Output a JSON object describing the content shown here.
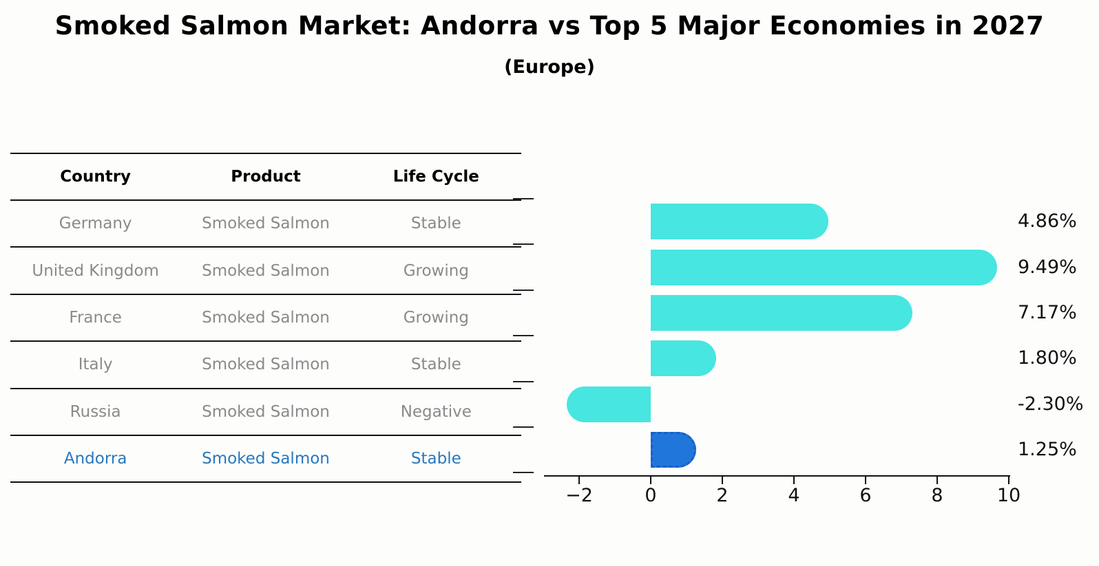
{
  "title": "Smoked Salmon Market: Andorra vs Top 5 Major Economies in 2027",
  "subtitle": "(Europe)",
  "table": {
    "headers": [
      "Country",
      "Product",
      "Life Cycle"
    ],
    "rows": [
      {
        "country": "Germany",
        "product": "Smoked Salmon",
        "life_cycle": "Stable",
        "highlight": false
      },
      {
        "country": "United Kingdom",
        "product": "Smoked Salmon",
        "life_cycle": "Growing",
        "highlight": false
      },
      {
        "country": "France",
        "product": "Smoked Salmon",
        "life_cycle": "Growing",
        "highlight": false
      },
      {
        "country": "Italy",
        "product": "Smoked Salmon",
        "life_cycle": "Stable",
        "highlight": false
      },
      {
        "country": "Russia",
        "product": "Smoked Salmon",
        "life_cycle": "Negative",
        "highlight": false
      },
      {
        "country": "Andorra",
        "product": "Smoked Salmon",
        "life_cycle": "Stable",
        "highlight": true
      }
    ],
    "highlight_text_color": "#2878be",
    "text_color": "#8a8a8a",
    "header_color": "#000000"
  },
  "chart_data": {
    "type": "bar",
    "orientation": "horizontal",
    "title": "Smoked Salmon Market: Andorra vs Top 5 Major Economies in 2027",
    "subtitle": "(Europe)",
    "categories": [
      "Germany",
      "United Kingdom",
      "France",
      "Italy",
      "Russia",
      "Andorra"
    ],
    "values": [
      4.86,
      9.49,
      7.17,
      1.8,
      -2.3,
      1.25
    ],
    "value_labels": [
      "4.86%",
      "9.49%",
      "7.17%",
      "1.80%",
      "-2.30%",
      "1.25%"
    ],
    "xlabel": "",
    "ylabel": "",
    "xlim": [
      -3,
      10.05
    ],
    "xticks": [
      -2,
      0,
      2,
      4,
      6,
      8,
      10
    ],
    "xtick_labels": [
      "−2",
      "0",
      "2",
      "4",
      "6",
      "8",
      "10"
    ],
    "grid": false,
    "legend": "none",
    "bar_color": "#47e6e0",
    "highlight": {
      "index": 5,
      "category": "Andorra",
      "color": "#2176db",
      "edge_color": "#1a5fc8",
      "edge_style": "dashed"
    },
    "bar_end_style": "rounded"
  }
}
